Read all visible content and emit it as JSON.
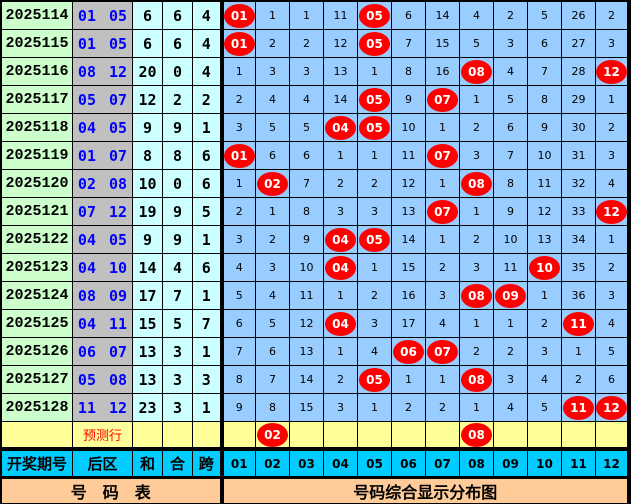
{
  "columns": {
    "period": "开奖期号",
    "back": "后区",
    "sum": "和",
    "mod": "合",
    "span": "跨",
    "numbers": [
      "01",
      "02",
      "03",
      "04",
      "05",
      "06",
      "07",
      "08",
      "09",
      "10",
      "11",
      "12"
    ]
  },
  "rows": [
    {
      "period": "2025114",
      "back": [
        "01",
        "05"
      ],
      "sum": "6",
      "mod": "6",
      "span": "4",
      "cells": [
        "01",
        "1",
        "1",
        "11",
        "05",
        "6",
        "14",
        "4",
        "2",
        "5",
        "26",
        "2"
      ]
    },
    {
      "period": "2025115",
      "back": [
        "01",
        "05"
      ],
      "sum": "6",
      "mod": "6",
      "span": "4",
      "cells": [
        "01",
        "2",
        "2",
        "12",
        "05",
        "7",
        "15",
        "5",
        "3",
        "6",
        "27",
        "3"
      ]
    },
    {
      "period": "2025116",
      "back": [
        "08",
        "12"
      ],
      "sum": "20",
      "mod": "0",
      "span": "4",
      "cells": [
        "1",
        "3",
        "3",
        "13",
        "1",
        "8",
        "16",
        "08",
        "4",
        "7",
        "28",
        "12"
      ]
    },
    {
      "period": "2025117",
      "back": [
        "05",
        "07"
      ],
      "sum": "12",
      "mod": "2",
      "span": "2",
      "cells": [
        "2",
        "4",
        "4",
        "14",
        "05",
        "9",
        "07",
        "1",
        "5",
        "8",
        "29",
        "1"
      ]
    },
    {
      "period": "2025118",
      "back": [
        "04",
        "05"
      ],
      "sum": "9",
      "mod": "9",
      "span": "1",
      "cells": [
        "3",
        "5",
        "5",
        "04",
        "05",
        "10",
        "1",
        "2",
        "6",
        "9",
        "30",
        "2"
      ]
    },
    {
      "period": "2025119",
      "back": [
        "01",
        "07"
      ],
      "sum": "8",
      "mod": "8",
      "span": "6",
      "cells": [
        "01",
        "6",
        "6",
        "1",
        "1",
        "11",
        "07",
        "3",
        "7",
        "10",
        "31",
        "3"
      ]
    },
    {
      "period": "2025120",
      "back": [
        "02",
        "08"
      ],
      "sum": "10",
      "mod": "0",
      "span": "6",
      "cells": [
        "1",
        "02",
        "7",
        "2",
        "2",
        "12",
        "1",
        "08",
        "8",
        "11",
        "32",
        "4"
      ]
    },
    {
      "period": "2025121",
      "back": [
        "07",
        "12"
      ],
      "sum": "19",
      "mod": "9",
      "span": "5",
      "cells": [
        "2",
        "1",
        "8",
        "3",
        "3",
        "13",
        "07",
        "1",
        "9",
        "12",
        "33",
        "12"
      ]
    },
    {
      "period": "2025122",
      "back": [
        "04",
        "05"
      ],
      "sum": "9",
      "mod": "9",
      "span": "1",
      "cells": [
        "3",
        "2",
        "9",
        "04",
        "05",
        "14",
        "1",
        "2",
        "10",
        "13",
        "34",
        "1"
      ]
    },
    {
      "period": "2025123",
      "back": [
        "04",
        "10"
      ],
      "sum": "14",
      "mod": "4",
      "span": "6",
      "cells": [
        "4",
        "3",
        "10",
        "04",
        "1",
        "15",
        "2",
        "3",
        "11",
        "10",
        "35",
        "2"
      ]
    },
    {
      "period": "2025124",
      "back": [
        "08",
        "09"
      ],
      "sum": "17",
      "mod": "7",
      "span": "1",
      "cells": [
        "5",
        "4",
        "11",
        "1",
        "2",
        "16",
        "3",
        "08",
        "09",
        "1",
        "36",
        "3"
      ]
    },
    {
      "period": "2025125",
      "back": [
        "04",
        "11"
      ],
      "sum": "15",
      "mod": "5",
      "span": "7",
      "cells": [
        "6",
        "5",
        "12",
        "04",
        "3",
        "17",
        "4",
        "1",
        "1",
        "2",
        "11",
        "4"
      ]
    },
    {
      "period": "2025126",
      "back": [
        "06",
        "07"
      ],
      "sum": "13",
      "mod": "3",
      "span": "1",
      "cells": [
        "7",
        "6",
        "13",
        "1",
        "4",
        "06",
        "07",
        "2",
        "2",
        "3",
        "1",
        "5"
      ]
    },
    {
      "period": "2025127",
      "back": [
        "05",
        "08"
      ],
      "sum": "13",
      "mod": "3",
      "span": "3",
      "cells": [
        "8",
        "7",
        "14",
        "2",
        "05",
        "1",
        "1",
        "08",
        "3",
        "4",
        "2",
        "6"
      ]
    },
    {
      "period": "2025128",
      "back": [
        "11",
        "12"
      ],
      "sum": "23",
      "mod": "3",
      "span": "1",
      "cells": [
        "9",
        "8",
        "15",
        "3",
        "1",
        "2",
        "2",
        "1",
        "4",
        "5",
        "11",
        "12"
      ]
    }
  ],
  "prediction": {
    "label": "预测行",
    "numbers": [
      "02",
      "08"
    ]
  },
  "footer": {
    "left": "号　码　表",
    "right": "号码综合显示分布图"
  },
  "colors": {
    "hit": "#ff0000",
    "period_bg": "#ccffcc",
    "back_bg": "#c0c0c0",
    "stat_bg": "#ccffff",
    "grid_bg": "#99ccff",
    "prediction_bg": "#ffff99",
    "header_bg": "#00ccff",
    "footer_bg": "#ffcc99",
    "back_text": "#0000ff"
  }
}
